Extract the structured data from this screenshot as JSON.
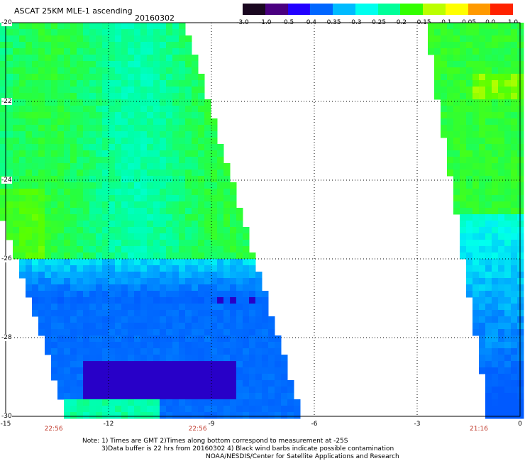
{
  "header": {
    "title": "ASCAT 25KM MLE-1 ascending",
    "date": "20160302"
  },
  "colorbar": {
    "colors": [
      "#1a0820",
      "#4a0080",
      "#2200ff",
      "#0066ff",
      "#00bbff",
      "#00ffee",
      "#00ff99",
      "#33ff00",
      "#bbff00",
      "#ffff00",
      "#ff9900",
      "#ff2200"
    ],
    "labels": [
      "-3.0",
      "-1.0",
      "-0.5",
      "-0.4",
      "-0.35",
      "-0.3",
      "-0.25",
      "-0.2",
      "-0.15",
      "-0.1",
      "-0.05",
      "0.0",
      "1.0"
    ]
  },
  "axes": {
    "lat_labels": [
      "-20",
      "-22",
      "-24",
      "-26",
      "-28",
      "-30"
    ],
    "lon_labels": [
      "-15",
      "-12",
      "-9",
      "-6",
      "-3",
      "0"
    ]
  },
  "pass_times": [
    "22:56",
    "22:56",
    "21:16"
  ],
  "notes": {
    "line1": "Note: 1) Times are GMT 2)Times along bottom correspond to measurement at -25S",
    "line2": "3)Data buffer is 22 hrs from 20160302 4) Black wind barbs indicate possible contamination",
    "line3": "NOAA/NESDIS/Center for Satellite Applications and Research"
  }
}
